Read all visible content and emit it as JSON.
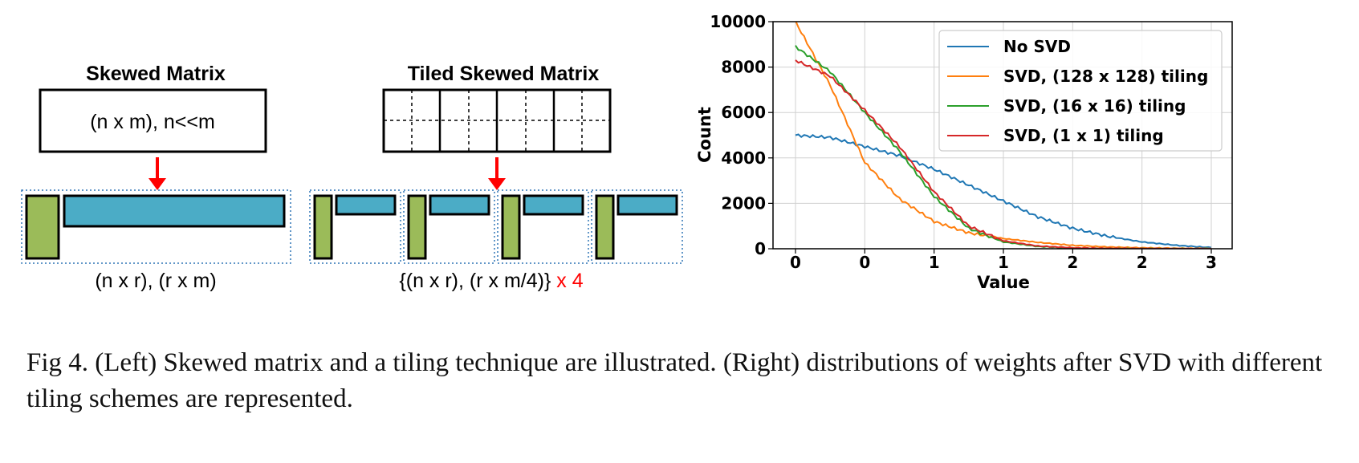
{
  "diagram": {
    "left_title": "Skewed Matrix",
    "left_box_label": "(n x m), n<<m",
    "left_bottom_label": "(n x r), (r x m)",
    "right_title": "Tiled Skewed Matrix",
    "right_bottom_label_main": "{(n x r), (r x m/4)}",
    "right_bottom_label_times": " x 4",
    "colors": {
      "green": "#9bbb59",
      "blue": "#4bacc6",
      "arrow": "#ff0000",
      "dotted": "#2e75b6"
    }
  },
  "chart_data": {
    "type": "line",
    "xlabel": "Value",
    "ylabel": "Count",
    "x_tick_labels": [
      "0",
      "0",
      "1",
      "1",
      "2",
      "2",
      "3"
    ],
    "y_tick_labels": [
      "0",
      "2000",
      "4000",
      "6000",
      "8000",
      "10000"
    ],
    "ylim": [
      0,
      10000
    ],
    "grid": true,
    "legend_position": "top-right",
    "x": [
      0.0,
      0.25,
      0.5,
      0.75,
      1.0,
      1.25,
      1.5,
      1.75,
      2.0,
      2.25,
      2.5,
      2.75,
      3.0
    ],
    "series": [
      {
        "name": "No SVD",
        "color": "#1f77b4",
        "values": [
          5000,
          4900,
          4500,
          4100,
          3500,
          2800,
          2100,
          1400,
          900,
          550,
          300,
          150,
          50
        ]
      },
      {
        "name": "SVD, (128 x 128) tiling",
        "color": "#ff7f0e",
        "values": [
          10000,
          7200,
          3800,
          2200,
          1200,
          700,
          450,
          280,
          150,
          80,
          40,
          20,
          10
        ]
      },
      {
        "name": "SVD, (16 x 16) tiling",
        "color": "#2ca02c",
        "values": [
          8900,
          7800,
          6000,
          4300,
          2300,
          900,
          300,
          100,
          30,
          10,
          5,
          0,
          0
        ]
      },
      {
        "name": "SVD, (1 x 1) tiling",
        "color": "#d62728",
        "values": [
          8300,
          7600,
          6100,
          4500,
          2500,
          1000,
          350,
          120,
          40,
          15,
          5,
          0,
          0
        ]
      }
    ]
  },
  "caption": {
    "text": "Fig 4. (Left) Skewed matrix and a tiling technique are illustrated. (Right) distributions of weights after SVD with different tiling schemes are represented."
  }
}
